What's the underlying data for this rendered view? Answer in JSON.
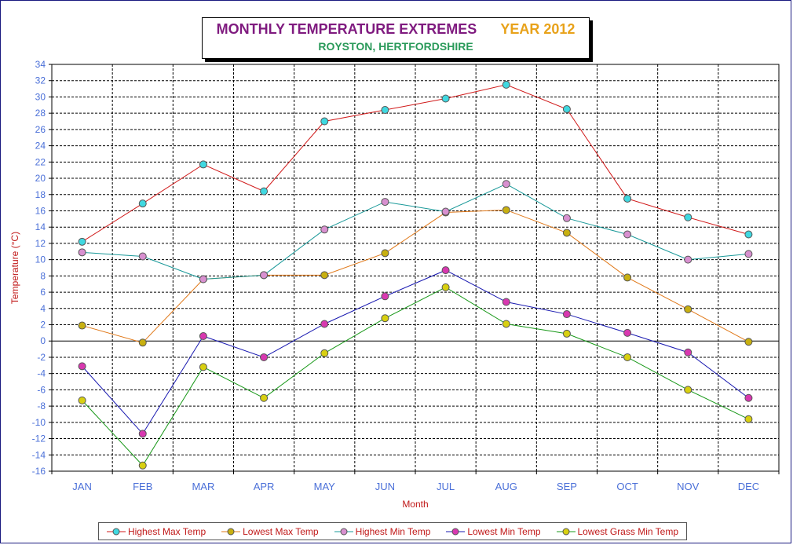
{
  "title": "MONTHLY TEMPERATURE EXTREMES",
  "year_label": "YEAR  2012",
  "subtitle": "ROYSTON, HERTFORDSHIRE",
  "colors": {
    "title": "#7f1a7f",
    "year": "#e8a21a",
    "subtitle": "#2a9a5a",
    "axis_label": "#c01818",
    "tick_label": "#4a6fd8"
  },
  "chart_data": {
    "type": "line",
    "xlabel": "Month",
    "ylabel": "Temperature (°C)",
    "ylim": [
      -16,
      34
    ],
    "ytick_step": 2,
    "grid": true,
    "legend_position": "bottom",
    "categories": [
      "JAN",
      "FEB",
      "MAR",
      "APR",
      "MAY",
      "JUN",
      "JUL",
      "AUG",
      "SEP",
      "OCT",
      "NOV",
      "DEC"
    ],
    "series": [
      {
        "name": "Highest Max Temp",
        "line_color": "#d01818",
        "marker_color": "#40d8e0",
        "values": [
          12.2,
          16.9,
          21.7,
          18.4,
          27.0,
          28.4,
          29.8,
          31.5,
          28.5,
          17.5,
          15.2,
          13.1
        ]
      },
      {
        "name": "Lowest Max Temp",
        "line_color": "#e07818",
        "marker_color": "#c8b010",
        "values": [
          1.9,
          -0.2,
          7.6,
          8.1,
          8.1,
          10.8,
          15.8,
          16.1,
          13.3,
          7.8,
          3.9,
          -0.1
        ]
      },
      {
        "name": "Highest Min Temp",
        "line_color": "#189898",
        "marker_color": "#d890d0",
        "values": [
          10.9,
          10.4,
          7.6,
          8.1,
          13.7,
          17.1,
          15.9,
          19.3,
          15.1,
          13.1,
          10.0,
          10.7
        ]
      },
      {
        "name": "Lowest Min Temp",
        "line_color": "#1818b0",
        "marker_color": "#d838b0",
        "values": [
          -3.1,
          -11.4,
          0.6,
          -2.0,
          2.1,
          5.5,
          8.7,
          4.8,
          3.3,
          1.0,
          -1.4,
          -7.0
        ]
      },
      {
        "name": "Lowest Grass Min Temp",
        "line_color": "#189818",
        "marker_color": "#d8d010",
        "values": [
          -7.3,
          -15.3,
          -3.2,
          -7.0,
          -1.5,
          2.8,
          6.6,
          2.1,
          0.9,
          -2.0,
          -6.0,
          -9.6
        ]
      }
    ]
  }
}
